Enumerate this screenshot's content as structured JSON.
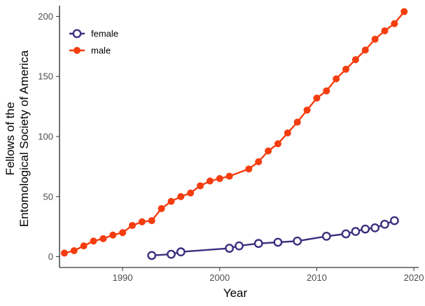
{
  "chart_data": {
    "type": "line",
    "xlabel": "Year",
    "ylabel_lines": [
      "Fellows of the",
      "Entomological Society of America"
    ],
    "xlim": [
      1983.5,
      2020.5
    ],
    "ylim": [
      -9,
      209
    ],
    "xticks": [
      1990,
      2000,
      2010,
      2020
    ],
    "yticks": [
      0,
      50,
      100,
      150,
      200
    ],
    "grid": false,
    "legend_position": "top-left",
    "series": [
      {
        "name": "female",
        "color": "#3b2f7f",
        "marker": "hollow-circle",
        "x": [
          1993,
          1995,
          1996,
          2001,
          2002,
          2004,
          2006,
          2008,
          2011,
          2013,
          2014,
          2015,
          2016,
          2017,
          2018
        ],
        "y": [
          1,
          2,
          4,
          7,
          9,
          11,
          12,
          13,
          17,
          19,
          21,
          23,
          24,
          27,
          30
        ]
      },
      {
        "name": "male",
        "color": "#f43d0f",
        "marker": "filled-circle",
        "x": [
          1984,
          1985,
          1986,
          1987,
          1988,
          1989,
          1990,
          1991,
          1992,
          1993,
          1994,
          1995,
          1996,
          1997,
          1998,
          1999,
          2000,
          2001,
          2003,
          2004,
          2005,
          2006,
          2007,
          2008,
          2009,
          2010,
          2011,
          2012,
          2013,
          2014,
          2015,
          2016,
          2017,
          2018,
          2019
        ],
        "y": [
          3,
          5,
          9,
          13,
          15,
          18,
          20,
          26,
          29,
          30,
          40,
          46,
          50,
          53,
          59,
          63,
          65,
          67,
          73,
          79,
          88,
          94,
          103,
          112,
          122,
          132,
          138,
          148,
          156,
          164,
          172,
          181,
          188,
          194,
          204
        ]
      }
    ]
  }
}
